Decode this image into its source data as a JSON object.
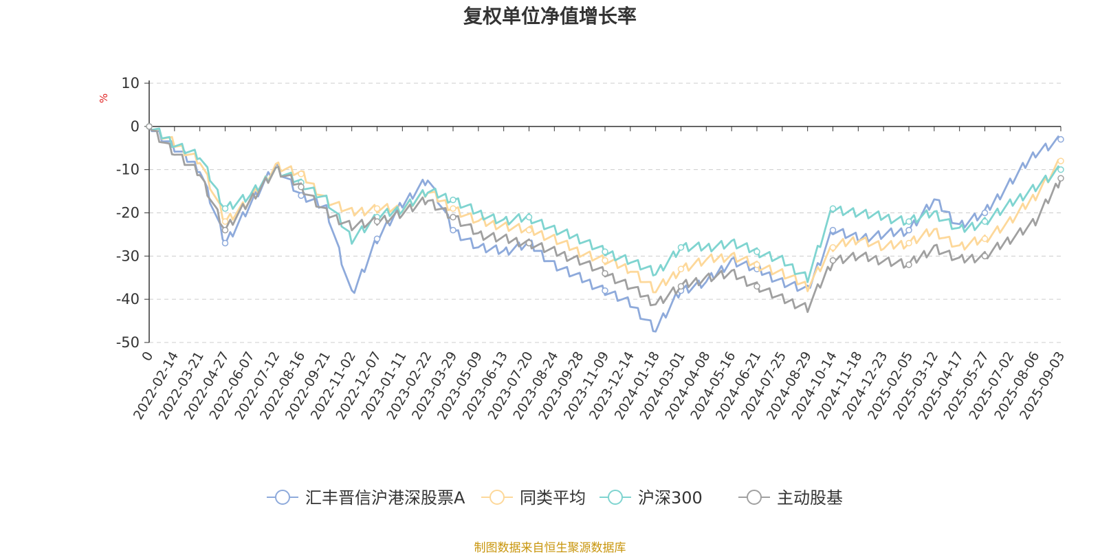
{
  "title": "复权单位净值增长率",
  "source": "制图数据来自恒生聚源数据库",
  "chart_data": {
    "type": "line",
    "title": "复权单位净值增长率",
    "ylabel": "%",
    "ylim": [
      -50,
      10
    ],
    "yticks": [
      10,
      0,
      -10,
      -20,
      -30,
      -40,
      -50
    ],
    "grid": "horizontal dashed",
    "legend_position": "bottom",
    "x_tick_labels": [
      "0",
      "2022-02-14",
      "2022-03-21",
      "2022-04-27",
      "2022-06-07",
      "2022-07-12",
      "2022-08-16",
      "2022-09-21",
      "2022-11-02",
      "2022-12-07",
      "2023-01-11",
      "2023-02-22",
      "2023-03-29",
      "2023-05-09",
      "2023-06-13",
      "2023-07-20",
      "2023-08-24",
      "2023-09-28",
      "2023-11-09",
      "2023-12-14",
      "2024-01-18",
      "2024-03-01",
      "2024-04-08",
      "2024-05-16",
      "2024-06-21",
      "2024-07-25",
      "2024-08-29",
      "2024-10-14",
      "2024-11-18",
      "2024-12-23",
      "2025-02-05",
      "2025-03-12",
      "2025-04-17",
      "2025-05-27",
      "2025-07-02",
      "2025-08-06",
      "2025-09-03"
    ],
    "series": [
      {
        "name": "汇丰晋信沪港深股票A",
        "color": "#8eaadb",
        "values": [
          0,
          -5,
          -10,
          -27,
          -18,
          -9,
          -16,
          -19,
          -39,
          -26,
          -18,
          -12,
          -24,
          -28,
          -29,
          -27,
          -32,
          -35,
          -38,
          -41,
          -47,
          -38,
          -36,
          -31,
          -33,
          -36,
          -38,
          -24,
          -26,
          -25,
          -24,
          -17,
          -23,
          -20,
          -13,
          -6,
          -3
        ]
      },
      {
        "name": "同类平均",
        "color": "#fdd89a",
        "values": [
          0,
          -4,
          -8,
          -22,
          -17,
          -9,
          -11,
          -17,
          -20,
          -19,
          -19,
          -15,
          -19,
          -22,
          -23,
          -24,
          -26,
          -29,
          -31,
          -33,
          -38,
          -33,
          -31,
          -30,
          -32,
          -34,
          -37,
          -28,
          -26,
          -28,
          -27,
          -24,
          -28,
          -26,
          -22,
          -16,
          -8
        ]
      },
      {
        "name": "沪深300",
        "color": "#7fd4d0",
        "values": [
          0,
          -4,
          -7,
          -19,
          -16,
          -10,
          -13,
          -17,
          -26,
          -21,
          -19,
          -15,
          -17,
          -20,
          -22,
          -21,
          -24,
          -26,
          -29,
          -31,
          -34,
          -28,
          -28,
          -27,
          -29,
          -31,
          -35,
          -19,
          -20,
          -21,
          -22,
          -20,
          -24,
          -22,
          -18,
          -14,
          -10
        ]
      },
      {
        "name": "主动股基",
        "color": "#a0a0a0",
        "values": [
          0,
          -6,
          -11,
          -24,
          -17,
          -10,
          -14,
          -20,
          -23,
          -22,
          -20,
          -17,
          -21,
          -25,
          -26,
          -27,
          -29,
          -31,
          -34,
          -37,
          -41,
          -37,
          -35,
          -34,
          -37,
          -40,
          -42,
          -31,
          -30,
          -31,
          -32,
          -28,
          -31,
          -30,
          -26,
          -22,
          -12
        ]
      }
    ]
  }
}
